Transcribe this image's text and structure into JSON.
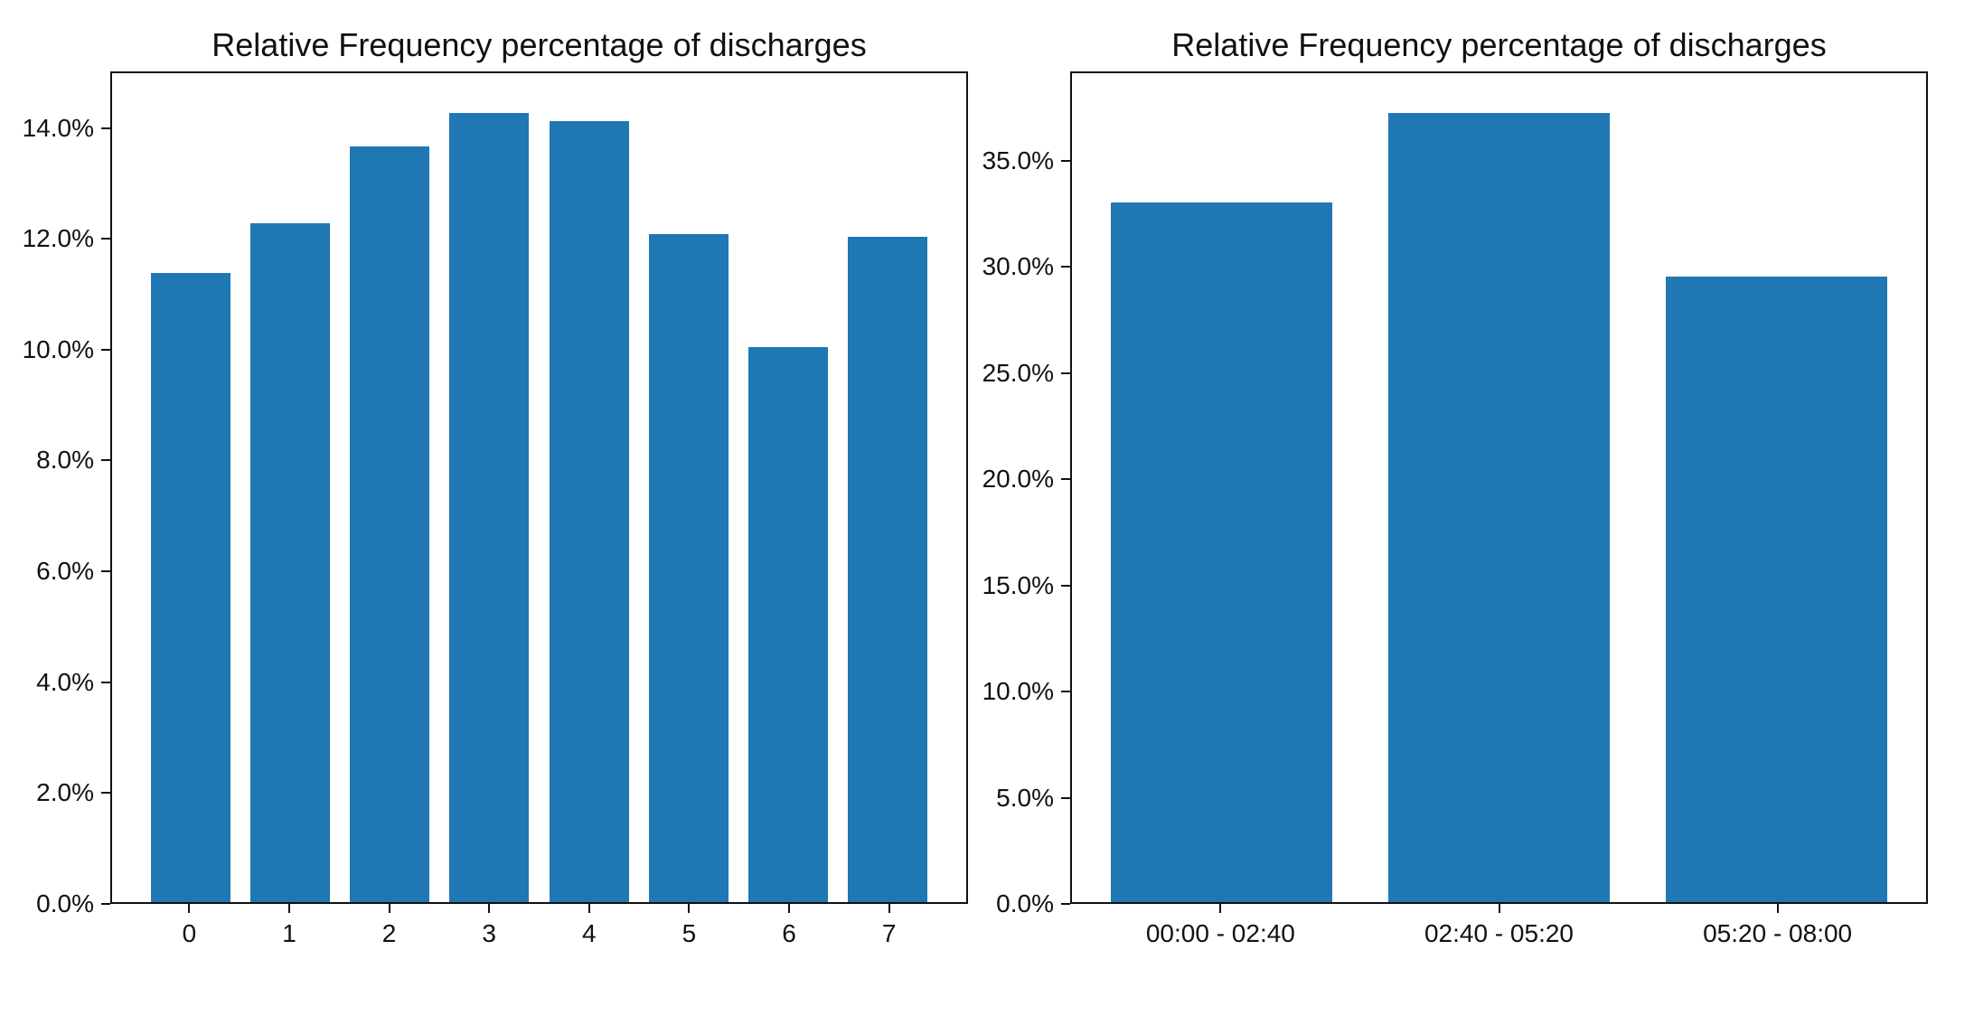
{
  "figure": {
    "background": "#ffffff",
    "bar_color": "#1f77b4",
    "spine_color": "#111111",
    "text_color": "#111111"
  },
  "chart_data": [
    {
      "id": "discharges-by-bin-0-7",
      "type": "bar",
      "title": "Relative Frequency percentage of discharges",
      "categories": [
        "0",
        "1",
        "2",
        "3",
        "4",
        "5",
        "6",
        "7"
      ],
      "values": [
        11.4,
        12.3,
        13.7,
        14.3,
        14.15,
        12.1,
        10.05,
        12.05
      ],
      "value_unit": "%",
      "xlabel": "",
      "ylabel": "",
      "ylim": [
        0,
        15.02
      ],
      "yticks": [
        0,
        2,
        4,
        6,
        8,
        10,
        12,
        14
      ],
      "ytick_labels": [
        "0.0%",
        "2.0%",
        "4.0%",
        "6.0%",
        "8.0%",
        "10.0%",
        "12.0%",
        "14.0%"
      ],
      "xlim": [
        -0.79,
        7.79
      ],
      "bar_width": 0.8,
      "bar_color": "#1f77b4",
      "grid": false,
      "legend": "none"
    },
    {
      "id": "discharges-by-time-range",
      "type": "bar",
      "title": "Relative Frequency percentage of discharges",
      "categories": [
        "00:00 - 02:40",
        "02:40 - 05:20",
        "05:20 - 08:00"
      ],
      "values": [
        33.1,
        37.3,
        29.6
      ],
      "value_unit": "%",
      "xlabel": "",
      "ylabel": "",
      "ylim": [
        0,
        39.2
      ],
      "yticks": [
        0,
        5,
        10,
        15,
        20,
        25,
        30,
        35
      ],
      "ytick_labels": [
        "0.0%",
        "5.0%",
        "10.0%",
        "15.0%",
        "20.0%",
        "25.0%",
        "30.0%",
        "35.0%"
      ],
      "xlim": [
        -0.54,
        2.54
      ],
      "bar_width": 0.8,
      "bar_color": "#1f77b4",
      "grid": false,
      "legend": "none"
    }
  ]
}
